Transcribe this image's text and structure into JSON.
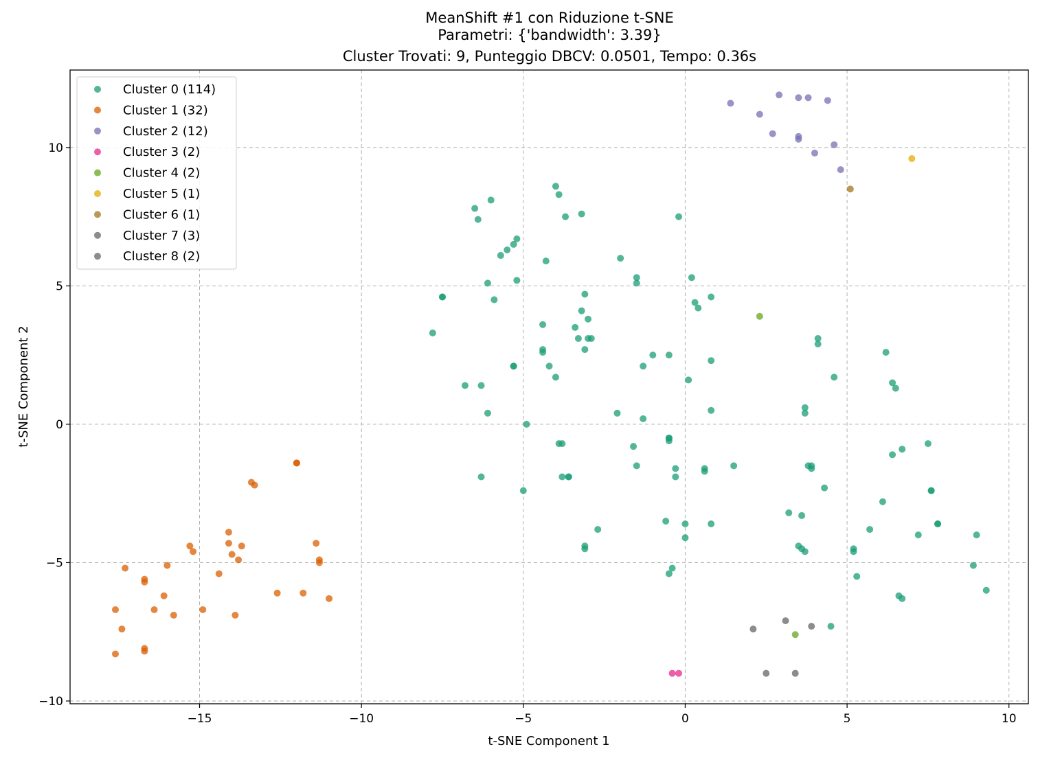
{
  "chart_data": {
    "type": "scatter",
    "title": [
      "MeanShift #1 con Riduzione t-SNE",
      "Parametri: {'bandwidth': 3.39}",
      "Cluster Trovati: 9, Punteggio DBCV: 0.0501, Tempo: 0.36s"
    ],
    "xlabel": "t-SNE Component 1",
    "ylabel": "t-SNE Component 2",
    "xlim": [
      -19.0,
      10.6
    ],
    "ylim": [
      -10.1,
      12.8
    ],
    "xticks": [
      -15,
      -10,
      -5,
      0,
      5,
      10
    ],
    "xtick_labels": [
      "−15",
      "−10",
      "−5",
      "0",
      "5",
      "10"
    ],
    "yticks": [
      -10,
      -5,
      0,
      5,
      10
    ],
    "ytick_labels": [
      "−10",
      "−5",
      "0",
      "5",
      "10"
    ],
    "grid": true,
    "legend_position": "top-left",
    "series": [
      {
        "name": "Cluster 0 (114)",
        "color": "#1b9e77",
        "points": [
          [
            -4.0,
            8.6
          ],
          [
            -3.9,
            8.3
          ],
          [
            -6.0,
            8.1
          ],
          [
            -6.5,
            7.8
          ],
          [
            -6.4,
            7.4
          ],
          [
            -3.7,
            7.5
          ],
          [
            -3.2,
            7.6
          ],
          [
            -0.2,
            7.5
          ],
          [
            -5.2,
            6.7
          ],
          [
            -5.3,
            6.5
          ],
          [
            -5.5,
            6.3
          ],
          [
            -5.7,
            6.1
          ],
          [
            -4.3,
            5.9
          ],
          [
            -2.0,
            6.0
          ],
          [
            0.2,
            5.3
          ],
          [
            -1.5,
            5.3
          ],
          [
            -1.5,
            5.1
          ],
          [
            -6.1,
            5.1
          ],
          [
            -5.2,
            5.2
          ],
          [
            -7.5,
            4.6
          ],
          [
            -7.5,
            4.6
          ],
          [
            -5.9,
            4.5
          ],
          [
            -3.1,
            4.7
          ],
          [
            0.8,
            4.6
          ],
          [
            0.3,
            4.4
          ],
          [
            0.4,
            4.2
          ],
          [
            -3.2,
            4.1
          ],
          [
            -3.0,
            3.8
          ],
          [
            -4.4,
            3.6
          ],
          [
            -3.4,
            3.5
          ],
          [
            -7.8,
            3.3
          ],
          [
            -3.3,
            3.1
          ],
          [
            -3.0,
            3.1
          ],
          [
            -4.4,
            2.6
          ],
          [
            -3.1,
            2.7
          ],
          [
            -1.0,
            2.5
          ],
          [
            -0.5,
            2.5
          ],
          [
            -5.3,
            2.1
          ],
          [
            -5.3,
            2.1
          ],
          [
            -4.2,
            2.1
          ],
          [
            -1.3,
            2.1
          ],
          [
            0.8,
            2.3
          ],
          [
            -4.0,
            1.7
          ],
          [
            0.1,
            1.6
          ],
          [
            -6.8,
            1.4
          ],
          [
            -6.3,
            1.4
          ],
          [
            -6.1,
            0.4
          ],
          [
            -4.9,
            0.0
          ],
          [
            -2.1,
            0.4
          ],
          [
            -1.3,
            0.2
          ],
          [
            0.8,
            0.5
          ],
          [
            -3.9,
            -0.7
          ],
          [
            -3.8,
            -0.7
          ],
          [
            -0.5,
            -0.5
          ],
          [
            -0.5,
            -0.6
          ],
          [
            -1.6,
            -0.8
          ],
          [
            -1.5,
            -1.5
          ],
          [
            -0.3,
            -1.6
          ],
          [
            -0.3,
            -1.9
          ],
          [
            0.6,
            -1.6
          ],
          [
            0.6,
            -1.7
          ],
          [
            1.5,
            -1.5
          ],
          [
            -6.3,
            -1.9
          ],
          [
            -3.8,
            -1.9
          ],
          [
            -3.6,
            -1.9
          ],
          [
            -3.6,
            -1.9
          ],
          [
            -5.0,
            -2.4
          ],
          [
            -2.7,
            -3.8
          ],
          [
            -3.1,
            -4.4
          ],
          [
            -3.1,
            -4.5
          ],
          [
            -0.6,
            -3.5
          ],
          [
            0.0,
            -3.6
          ],
          [
            0.8,
            -3.6
          ],
          [
            0.0,
            -4.1
          ],
          [
            -0.4,
            -5.2
          ],
          [
            -0.5,
            -5.4
          ],
          [
            3.8,
            -1.5
          ],
          [
            3.9,
            -1.5
          ],
          [
            3.9,
            -1.6
          ],
          [
            4.3,
            -2.3
          ],
          [
            3.2,
            -3.2
          ],
          [
            3.6,
            -3.3
          ],
          [
            3.5,
            -4.4
          ],
          [
            3.6,
            -4.5
          ],
          [
            3.7,
            -4.6
          ],
          [
            4.1,
            3.1
          ],
          [
            4.1,
            2.9
          ],
          [
            3.7,
            0.6
          ],
          [
            3.7,
            0.4
          ],
          [
            4.6,
            1.7
          ],
          [
            6.2,
            2.6
          ],
          [
            6.4,
            1.5
          ],
          [
            6.5,
            1.3
          ],
          [
            7.5,
            -0.7
          ],
          [
            6.7,
            -0.9
          ],
          [
            6.4,
            -1.1
          ],
          [
            7.6,
            -2.4
          ],
          [
            7.6,
            -2.4
          ],
          [
            6.1,
            -2.8
          ],
          [
            5.7,
            -3.8
          ],
          [
            7.8,
            -3.6
          ],
          [
            7.8,
            -3.6
          ],
          [
            7.2,
            -4.0
          ],
          [
            9.0,
            -4.0
          ],
          [
            5.2,
            -4.5
          ],
          [
            5.2,
            -4.6
          ],
          [
            5.3,
            -5.5
          ],
          [
            8.9,
            -5.1
          ],
          [
            9.3,
            -6.0
          ],
          [
            6.6,
            -6.2
          ],
          [
            6.7,
            -6.3
          ],
          [
            4.5,
            -7.3
          ],
          [
            -2.9,
            3.1
          ],
          [
            -4.4,
            2.7
          ],
          [
            -0.5,
            -0.5
          ]
        ]
      },
      {
        "name": "Cluster 1 (32)",
        "color": "#d95f02",
        "points": [
          [
            -12.0,
            -1.4
          ],
          [
            -12.0,
            -1.4
          ],
          [
            -13.4,
            -2.1
          ],
          [
            -13.3,
            -2.2
          ],
          [
            -14.1,
            -3.9
          ],
          [
            -14.1,
            -4.3
          ],
          [
            -13.7,
            -4.4
          ],
          [
            -15.3,
            -4.4
          ],
          [
            -15.2,
            -4.6
          ],
          [
            -14.0,
            -4.7
          ],
          [
            -13.8,
            -4.9
          ],
          [
            -11.4,
            -4.3
          ],
          [
            -11.3,
            -4.9
          ],
          [
            -11.3,
            -5.0
          ],
          [
            -17.3,
            -5.2
          ],
          [
            -16.0,
            -5.1
          ],
          [
            -14.4,
            -5.4
          ],
          [
            -16.7,
            -5.6
          ],
          [
            -16.7,
            -5.7
          ],
          [
            -16.1,
            -6.2
          ],
          [
            -12.6,
            -6.1
          ],
          [
            -11.8,
            -6.1
          ],
          [
            -11.0,
            -6.3
          ],
          [
            -16.4,
            -6.7
          ],
          [
            -14.9,
            -6.7
          ],
          [
            -17.6,
            -6.7
          ],
          [
            -15.8,
            -6.9
          ],
          [
            -13.9,
            -6.9
          ],
          [
            -17.4,
            -7.4
          ],
          [
            -16.7,
            -8.1
          ],
          [
            -16.7,
            -8.2
          ],
          [
            -17.6,
            -8.3
          ]
        ]
      },
      {
        "name": "Cluster 2 (12)",
        "color": "#7570b3",
        "points": [
          [
            1.4,
            11.6
          ],
          [
            2.9,
            11.9
          ],
          [
            3.5,
            11.8
          ],
          [
            3.8,
            11.8
          ],
          [
            4.4,
            11.7
          ],
          [
            2.3,
            11.2
          ],
          [
            2.7,
            10.5
          ],
          [
            3.5,
            10.4
          ],
          [
            3.5,
            10.3
          ],
          [
            4.6,
            10.1
          ],
          [
            4.0,
            9.8
          ],
          [
            4.8,
            9.2
          ]
        ]
      },
      {
        "name": "Cluster 3 (2)",
        "color": "#e7298a",
        "points": [
          [
            -0.4,
            -9.0
          ],
          [
            -0.2,
            -9.0
          ]
        ]
      },
      {
        "name": "Cluster 4 (2)",
        "color": "#66a61e",
        "points": [
          [
            2.3,
            3.9
          ],
          [
            3.4,
            -7.6
          ]
        ]
      },
      {
        "name": "Cluster 5 (1)",
        "color": "#e6ab02",
        "points": [
          [
            7.0,
            9.6
          ]
        ]
      },
      {
        "name": "Cluster 6 (1)",
        "color": "#a6761d",
        "points": [
          [
            5.1,
            8.5
          ]
        ]
      },
      {
        "name": "Cluster 7 (3)",
        "color": "#666666",
        "points": [
          [
            2.1,
            -7.4
          ],
          [
            3.1,
            -7.1
          ],
          [
            3.9,
            -7.3
          ]
        ]
      },
      {
        "name": "Cluster 8 (2)",
        "color": "#666666",
        "points": [
          [
            2.5,
            -9.0
          ],
          [
            3.4,
            -9.0
          ]
        ]
      }
    ]
  }
}
